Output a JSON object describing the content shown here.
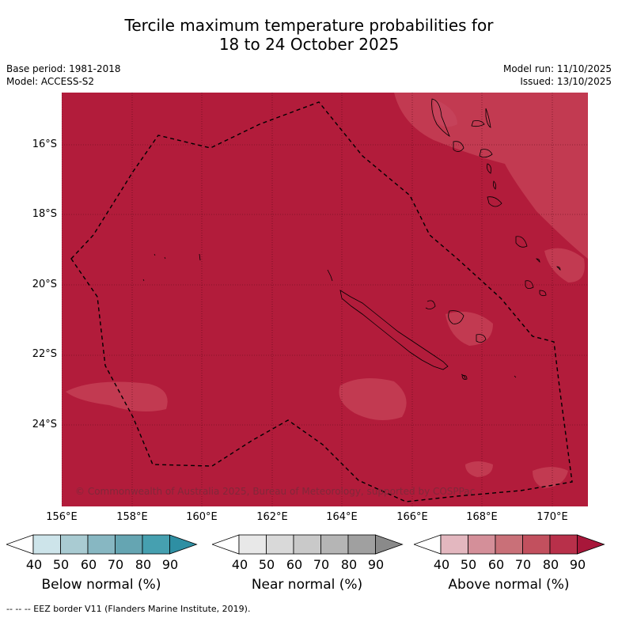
{
  "title_line1": "Tercile maximum temperature probabilities for",
  "title_line2": "18 to 24 October 2025",
  "base_period": "Base period: 1981-2018",
  "model": "Model: ACCESS-S2",
  "model_run": "Model run: 11/10/2025",
  "issued": "Issued: 13/10/2025",
  "lat_labels": [
    "16°S",
    "18°S",
    "20°S",
    "22°S",
    "24°S"
  ],
  "lon_labels": [
    "156°E",
    "158°E",
    "160°E",
    "162°E",
    "164°E",
    "166°E",
    "168°E",
    "170°E"
  ],
  "copyright": "© Commonwealth of Australia 2025, Bureau of Meteorology, supported by COSPPac",
  "colorbars": [
    {
      "label": "Below normal (%)",
      "ticks": [
        "40",
        "50",
        "60",
        "70",
        "80",
        "90"
      ],
      "colors": [
        "#ffffff",
        "#cde4ea",
        "#a9cbd2",
        "#87b7c2",
        "#65a5b2",
        "#46a0b0",
        "#2e8fa3"
      ]
    },
    {
      "label": "Near normal (%)",
      "ticks": [
        "40",
        "50",
        "60",
        "70",
        "80",
        "90"
      ],
      "colors": [
        "#ffffff",
        "#e8e8e8",
        "#d9d9d9",
        "#c9c9c9",
        "#b5b5b5",
        "#a0a0a0",
        "#8a8a8a"
      ]
    },
    {
      "label": "Above normal (%)",
      "ticks": [
        "40",
        "50",
        "60",
        "70",
        "80",
        "90"
      ],
      "colors": [
        "#ffffff",
        "#e3b7bf",
        "#d48f99",
        "#c97078",
        "#c2505e",
        "#b8304a",
        "#a8173a"
      ]
    }
  ],
  "map_colors": {
    "background": "#b21c3b",
    "lighter_patch": "#c23a51",
    "coast": "#000000"
  },
  "footer": "--  --  -- EEZ border V11 (Flanders Marine Institute, 2019)."
}
